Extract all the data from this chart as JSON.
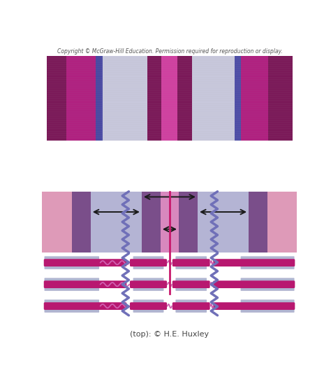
{
  "bg_color": "#ffffff",
  "copyright_text": "Copyright © McGraw-Hill Education. Permission required for reproduction or display.",
  "bottom_credit": "(top): © H.E. Huxley",
  "colors": {
    "pink_outer": "#de9ab8",
    "purple_dark": "#7a4e8a",
    "lavender": "#b4b4d4",
    "pink_center": "#d888be",
    "zigzag_blue": "#7070b8",
    "magenta_line": "#c8186c",
    "actin_blue": "#b0b4d0",
    "myosin_magenta": "#b81870",
    "wavy_pink": "#d060b0",
    "micro_bg": "#c8c8dc",
    "micro_dark": "#7a1858",
    "micro_mid": "#c83090",
    "micro_light": "#c8c8dc",
    "micro_zline": "#4848a0",
    "arrow_color": "#1a1a1a"
  }
}
